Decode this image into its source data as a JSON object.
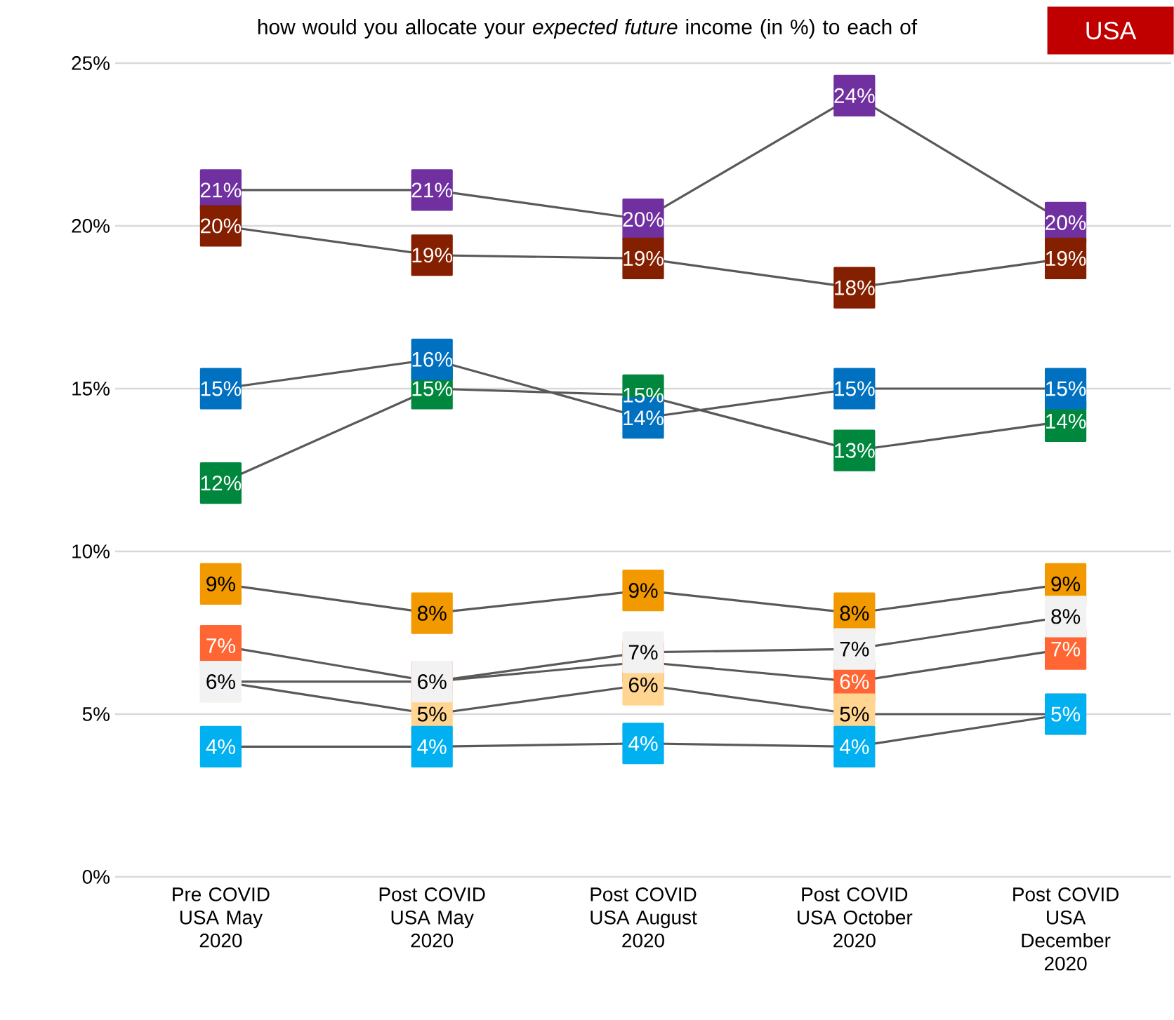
{
  "chart_data": {
    "type": "line",
    "title": "how would you allocate your *expected future* income (in %) to each of",
    "annotations": [
      "USA"
    ],
    "categories": [
      "Pre COVID USA May 2020",
      "Post COVID USA May 2020",
      "Post COVID USA August 2020",
      "Post COVID USA October 2020",
      "Post COVID USA December 2020"
    ],
    "ylim": [
      0,
      25
    ],
    "yticks": [
      {
        "value": 0,
        "label": "0%"
      },
      {
        "value": 5,
        "label": "5%"
      },
      {
        "value": 10,
        "label": "10%"
      },
      {
        "value": 15,
        "label": "15%"
      },
      {
        "value": 20,
        "label": "20%"
      },
      {
        "value": 25,
        "label": "25%"
      }
    ],
    "grid": "y",
    "marker": "square",
    "line_style": "solid",
    "series": [
      {
        "color": "#595959",
        "colors": [
          "#7030A0",
          "#7030A0",
          "#7030A0",
          "#7030A0",
          "#7030A0"
        ],
        "values": [
          21.1,
          21.1,
          20.2,
          24.0,
          20.1
        ],
        "value_labels": [
          "21%",
          "21%",
          "20%",
          "24%",
          "20%"
        ]
      },
      {
        "color": "#595959",
        "colors": [
          "#00873E",
          "#00873E",
          "#00873E",
          "#00873E",
          "#00873E"
        ],
        "values": [
          12.1,
          15.0,
          14.8,
          13.1,
          14.0
        ],
        "value_labels": [
          "12%",
          "15%",
          "15%",
          "13%",
          "14%"
        ]
      },
      {
        "color": "#595959",
        "colors": [
          "#841F00",
          "#841F00",
          "#841F00",
          "#841F00",
          "#841F00"
        ],
        "values": [
          20.0,
          19.1,
          19.0,
          18.1,
          19.0
        ],
        "value_labels": [
          "20%",
          "19%",
          "19%",
          "18%",
          "19%"
        ]
      },
      {
        "color": "#595959",
        "colors": [
          "#0070C0",
          "#0070C0",
          "#0070C0",
          "#0070C0",
          "#0070C0"
        ],
        "values": [
          15.0,
          15.9,
          14.1,
          15.0,
          15.0
        ],
        "value_labels": [
          "15%",
          "16%",
          "14%",
          "15%",
          "15%"
        ]
      },
      {
        "color": "#595959",
        "colors": [
          "#F29900",
          "#F29900",
          "#F29900",
          "#F29900",
          "#F29900"
        ],
        "values": [
          9.0,
          8.1,
          8.8,
          8.1,
          9.0
        ],
        "value_labels": [
          "9%",
          "8%",
          "9%",
          "8%",
          "9%"
        ]
      },
      {
        "color": "#595959",
        "colors": [
          "#FF6633",
          "#FF6633",
          "#FF6633",
          "#FF6633",
          "#FF6633"
        ],
        "values": [
          7.1,
          6.0,
          6.6,
          6.0,
          7.0
        ],
        "value_labels": [
          "7%",
          null,
          null,
          "6%",
          "7%"
        ]
      },
      {
        "color": "#595959",
        "colors": [
          "#FFD591",
          "#FFD591",
          "#FFD591",
          "#FFD591",
          "#FFD591"
        ],
        "values": [
          6.0,
          5.0,
          5.9,
          5.0,
          5.0
        ],
        "value_labels": [
          null,
          "5%",
          "6%",
          "5%",
          null
        ]
      },
      {
        "color": "#595959",
        "colors": [
          "#F2F2F2",
          "#F2F2F2",
          "#F2F2F2",
          "#F2F2F2",
          "#F2F2F2"
        ],
        "values": [
          6.0,
          6.0,
          6.9,
          7.0,
          8.0
        ],
        "value_labels": [
          "6%",
          "6%",
          "7%",
          "7%",
          "8%"
        ]
      },
      {
        "color": "#595959",
        "colors": [
          "#00B0F0",
          "#00B0F0",
          "#00B0F0",
          "#00B0F0",
          "#00B0F0"
        ],
        "values": [
          4.0,
          4.0,
          4.1,
          4.0,
          5.0
        ],
        "value_labels": [
          "4%",
          "4%",
          "4%",
          "4%",
          "5%"
        ]
      }
    ]
  }
}
